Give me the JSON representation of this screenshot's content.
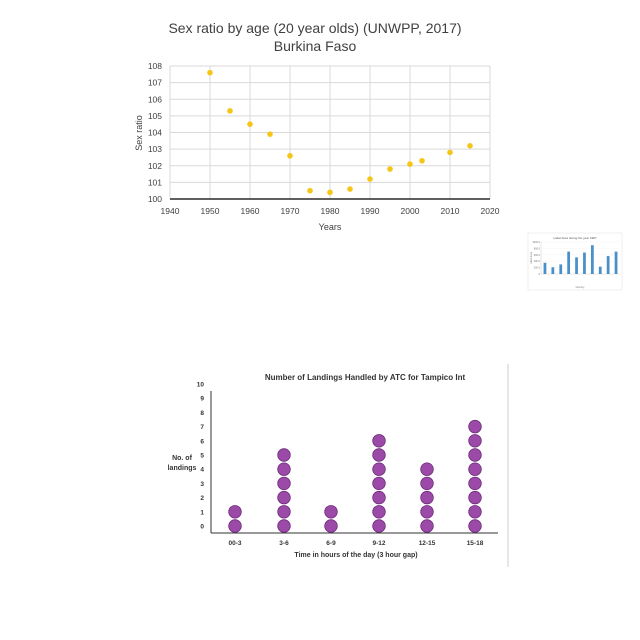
{
  "chart_data": [
    {
      "type": "scatter",
      "title": "Sex ratio by age (20 year olds) (UNWPP, 2017)",
      "subtitle": "Burkina Faso",
      "xlabel": "Years",
      "ylabel": "Sex ratio",
      "xlim": [
        1940,
        2020
      ],
      "ylim": [
        100,
        108
      ],
      "xticks": [
        "1940",
        "1950",
        "1960",
        "1970",
        "1980",
        "1990",
        "2000",
        "2010",
        "2020"
      ],
      "yticks": [
        "100",
        "101",
        "102",
        "103",
        "104",
        "105",
        "106",
        "107",
        "108"
      ],
      "grid": true,
      "marker_color": "#f5c518",
      "series": [
        {
          "x": [
            1950,
            1955,
            1960,
            1965,
            1970,
            1975,
            1980,
            1985,
            1990,
            1995,
            2000,
            2003,
            2010,
            2015
          ],
          "y": [
            107.6,
            105.3,
            104.5,
            103.9,
            102.6,
            100.5,
            100.4,
            100.6,
            101.2,
            101.8,
            102.1,
            102.3,
            102.8,
            103.2
          ]
        }
      ]
    },
    {
      "type": "bar",
      "title": "Label does during the year 1987",
      "xlabel": "Country",
      "ylabel": "Label does",
      "yticks": [
        "0",
        "200.0",
        "400.0",
        "600.0",
        "800.0",
        "1000.0"
      ],
      "ylim": [
        0,
        1000
      ],
      "values": [
        350,
        210,
        300,
        700,
        520,
        670,
        900,
        230,
        560,
        700
      ],
      "bar_color": "#4a90c8"
    },
    {
      "type": "dot_plot",
      "title": "Number of Landings Handled by ATC for Tampico Int",
      "xlabel": "Time in hours of the day (3 hour gap)",
      "ylabel_line1": "No. of",
      "ylabel_line2": "landings",
      "categories": [
        "00-3",
        "3-6",
        "6-9",
        "9-12",
        "12-15",
        "15-18"
      ],
      "values": [
        2,
        6,
        2,
        7,
        5,
        8
      ],
      "yticks": [
        "0",
        "1",
        "2",
        "3",
        "4",
        "5",
        "6",
        "7",
        "8",
        "9",
        "10"
      ],
      "ylim": [
        0,
        10
      ],
      "dot_color": "#9b4aa8"
    }
  ]
}
